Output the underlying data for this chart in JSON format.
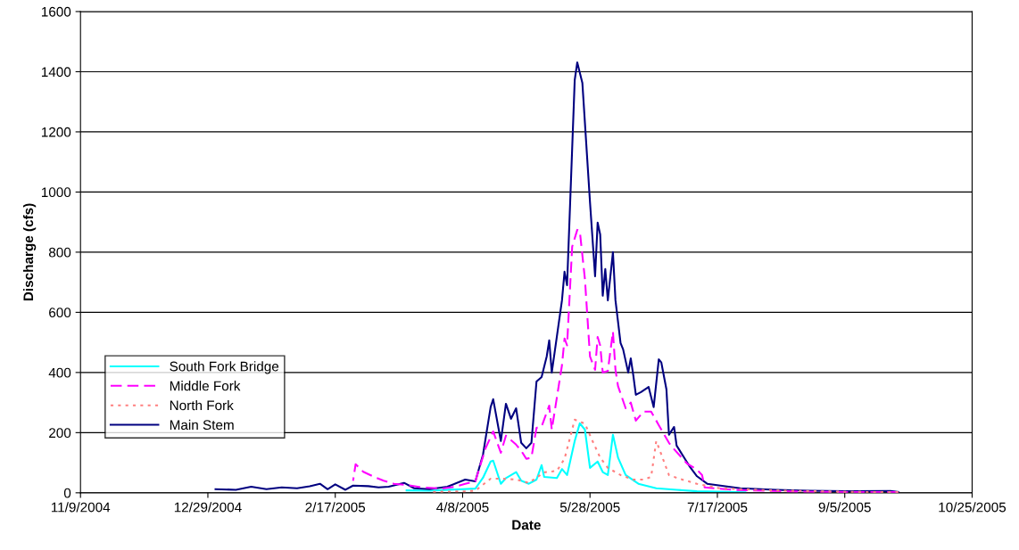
{
  "chart_data": {
    "type": "line",
    "xlabel": "Date",
    "ylabel": "Discharge (cfs)",
    "xlim": [
      "2004-11-09",
      "2005-10-25"
    ],
    "xticks": [
      {
        "value": "2004-11-09",
        "label": "11/9/2004"
      },
      {
        "value": "2004-12-29",
        "label": "12/29/2004"
      },
      {
        "value": "2005-02-17",
        "label": "2/17/2005"
      },
      {
        "value": "2005-04-08",
        "label": "4/8/2005"
      },
      {
        "value": "2005-05-28",
        "label": "5/28/2005"
      },
      {
        "value": "2005-07-17",
        "label": "7/17/2005"
      },
      {
        "value": "2005-09-05",
        "label": "9/5/2005"
      },
      {
        "value": "2005-10-25",
        "label": "10/25/2005"
      }
    ],
    "ylim": [
      0,
      1600
    ],
    "yticks": [
      0,
      200,
      400,
      600,
      800,
      1000,
      1200,
      1400,
      1600
    ],
    "grid": "y",
    "legend": "left",
    "marker": "none",
    "series": [
      {
        "name": "South Fork Bridge",
        "color": "#00ffff",
        "line_style": "solid",
        "x": [
          "2005-03-17",
          "2005-03-26",
          "2005-04-13",
          "2005-04-16",
          "2005-04-19",
          "2005-04-20",
          "2005-04-23",
          "2005-04-25",
          "2005-04-29",
          "2005-05-01",
          "2005-05-04",
          "2005-05-07",
          "2005-05-09",
          "2005-05-10",
          "2005-05-15",
          "2005-05-17",
          "2005-05-19",
          "2005-05-22",
          "2005-05-24",
          "2005-05-26",
          "2005-05-28",
          "2005-05-31",
          "2005-06-02",
          "2005-06-04",
          "2005-06-06",
          "2005-06-08",
          "2005-06-11",
          "2005-06-16",
          "2005-06-23",
          "2005-07-01",
          "2005-07-09",
          "2005-07-28"
        ],
        "values": [
          8,
          7,
          14,
          50,
          104,
          107,
          30,
          49,
          69,
          40,
          30,
          44,
          92,
          53,
          49,
          79,
          59,
          172,
          231,
          210,
          83,
          104,
          69,
          59,
          193,
          117,
          59,
          30,
          15,
          10,
          5,
          2
        ]
      },
      {
        "name": "Middle Fork",
        "color": "#ff00ff",
        "line_style": "dashed",
        "x": [
          "2005-02-24",
          "2005-02-25",
          "2005-02-28",
          "2005-03-05",
          "2005-03-08",
          "2005-03-12",
          "2005-03-18",
          "2005-03-23",
          "2005-03-31",
          "2005-04-05",
          "2005-04-09",
          "2005-04-13",
          "2005-04-17",
          "2005-04-20",
          "2005-04-23",
          "2005-04-25",
          "2005-04-29",
          "2005-05-01",
          "2005-05-03",
          "2005-05-05",
          "2005-05-07",
          "2005-05-09",
          "2005-05-12",
          "2005-05-13",
          "2005-05-17",
          "2005-05-18",
          "2005-05-19",
          "2005-05-21",
          "2005-05-23",
          "2005-05-24",
          "2005-05-26",
          "2005-05-28",
          "2005-05-30",
          "2005-05-31",
          "2005-06-01",
          "2005-06-02",
          "2005-06-04",
          "2005-06-06",
          "2005-06-07",
          "2005-06-08",
          "2005-06-11",
          "2005-06-13",
          "2005-06-15",
          "2005-06-18",
          "2005-06-21",
          "2005-06-24",
          "2005-06-28",
          "2005-06-30",
          "2005-07-05",
          "2005-07-09",
          "2005-07-11",
          "2005-07-12",
          "2005-07-23",
          "2005-08-07",
          "2005-08-27",
          "2005-09-26"
        ],
        "values": [
          40,
          95,
          70,
          50,
          40,
          30,
          25,
          18,
          14,
          20,
          30,
          38,
          148,
          204,
          133,
          190,
          160,
          140,
          113,
          117,
          216,
          220,
          290,
          210,
          424,
          513,
          490,
          818,
          874,
          870,
          711,
          453,
          409,
          518,
          490,
          400,
          405,
          536,
          409,
          355,
          281,
          300,
          240,
          270,
          270,
          225,
          166,
          145,
          98,
          77,
          59,
          18,
          10,
          6,
          3,
          2
        ]
      },
      {
        "name": "North Fork",
        "color": "#ff8080",
        "line_style": "dotted",
        "x": [
          "2005-03-26",
          "2005-04-09",
          "2005-04-13",
          "2005-04-19",
          "2005-04-23",
          "2005-04-29",
          "2005-05-04",
          "2005-05-10",
          "2005-05-15",
          "2005-05-18",
          "2005-05-22",
          "2005-05-26",
          "2005-05-29",
          "2005-06-01",
          "2005-06-04",
          "2005-06-09",
          "2005-06-14",
          "2005-06-18",
          "2005-06-21",
          "2005-06-23",
          "2005-06-24",
          "2005-06-28",
          "2005-07-02",
          "2005-07-09",
          "2005-07-18",
          "2005-08-07",
          "2005-09-06",
          "2005-09-26"
        ],
        "values": [
          3,
          5,
          7,
          47,
          47,
          44,
          33,
          68,
          73,
          113,
          243,
          230,
          172,
          117,
          83,
          59,
          44,
          44,
          53,
          172,
          150,
          59,
          47,
          30,
          15,
          8,
          3,
          2
        ]
      },
      {
        "name": "Main Stem",
        "color": "#000080",
        "line_style": "solid",
        "x": [
          "2005-01-01",
          "2005-01-09",
          "2005-01-15",
          "2005-01-21",
          "2005-01-27",
          "2005-02-02",
          "2005-02-07",
          "2005-02-11",
          "2005-02-14",
          "2005-02-17",
          "2005-02-21",
          "2005-02-24",
          "2005-03-02",
          "2005-03-06",
          "2005-03-10",
          "2005-03-16",
          "2005-03-20",
          "2005-03-26",
          "2005-04-02",
          "2005-04-09",
          "2005-04-13",
          "2005-04-16",
          "2005-04-19",
          "2005-04-20",
          "2005-04-23",
          "2005-04-25",
          "2005-04-27",
          "2005-04-29",
          "2005-05-01",
          "2005-05-03",
          "2005-05-05",
          "2005-05-07",
          "2005-05-09",
          "2005-05-11",
          "2005-05-12",
          "2005-05-13",
          "2005-05-15",
          "2005-05-17",
          "2005-05-18",
          "2005-05-19",
          "2005-05-22",
          "2005-05-23",
          "2005-05-25",
          "2005-05-28",
          "2005-05-30",
          "2005-05-31",
          "2005-06-01",
          "2005-06-02",
          "2005-06-03",
          "2005-06-04",
          "2005-06-06",
          "2005-06-07",
          "2005-06-09",
          "2005-06-10",
          "2005-06-12",
          "2005-06-13",
          "2005-06-14",
          "2005-06-15",
          "2005-06-17",
          "2005-06-20",
          "2005-06-22",
          "2005-06-24",
          "2005-06-25",
          "2005-06-27",
          "2005-06-28",
          "2005-06-30",
          "2005-07-01",
          "2005-07-06",
          "2005-07-09",
          "2005-07-13",
          "2005-07-26",
          "2005-08-09",
          "2005-08-22",
          "2005-09-06",
          "2005-09-23",
          "2005-09-26"
        ],
        "values": [
          12,
          10,
          20,
          12,
          18,
          15,
          22,
          30,
          12,
          28,
          10,
          24,
          22,
          18,
          20,
          33,
          15,
          12,
          20,
          44,
          38,
          127,
          285,
          311,
          172,
          296,
          246,
          281,
          166,
          148,
          166,
          370,
          385,
          453,
          507,
          400,
          520,
          640,
          735,
          690,
          1372,
          1431,
          1363,
          966,
          720,
          898,
          859,
          655,
          744,
          640,
          800,
          640,
          498,
          477,
          400,
          447,
          390,
          326,
          335,
          352,
          285,
          444,
          433,
          344,
          193,
          219,
          157,
          89,
          55,
          30,
          15,
          10,
          7,
          5,
          6,
          3
        ]
      }
    ]
  }
}
